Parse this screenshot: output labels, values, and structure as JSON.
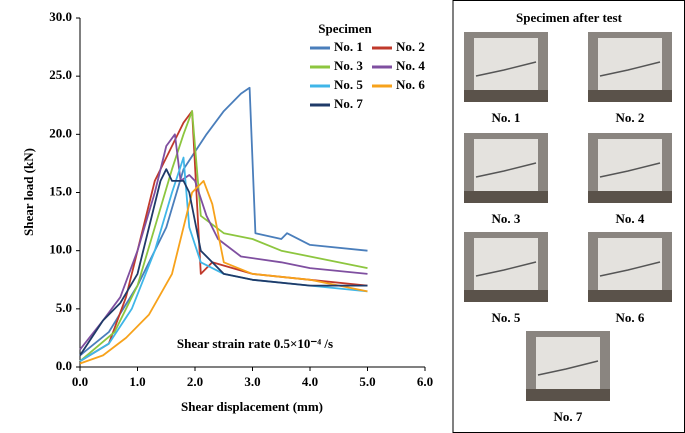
{
  "chart_data": {
    "type": "line",
    "ylabel": "Shear load (kN)",
    "xlabel": "Shear displacement (mm)",
    "annotation": "Shear strain rate 0.5×10⁻⁴ /s",
    "legend_title": "Specimen",
    "xlim": [
      0,
      6
    ],
    "ylim": [
      0,
      30
    ],
    "xticks": [
      {
        "value": 0,
        "label": "0.0"
      },
      {
        "value": 1,
        "label": "1.0"
      },
      {
        "value": 2,
        "label": "2.0"
      },
      {
        "value": 3,
        "label": "3.0"
      },
      {
        "value": 4,
        "label": "4.0"
      },
      {
        "value": 5,
        "label": "5.0"
      },
      {
        "value": 6,
        "label": "6.0"
      }
    ],
    "yticks": [
      {
        "value": 0,
        "label": "0.0"
      },
      {
        "value": 5,
        "label": "5.0"
      },
      {
        "value": 10,
        "label": "10.0"
      },
      {
        "value": 15,
        "label": "15.0"
      },
      {
        "value": 20,
        "label": "20.0"
      },
      {
        "value": 25,
        "label": "25.0"
      },
      {
        "value": 30,
        "label": "30.0"
      }
    ],
    "grid": false,
    "series": [
      {
        "name": "No. 1",
        "color": "#4a7ebb",
        "x": [
          0,
          0.5,
          1.0,
          1.5,
          1.8,
          2.2,
          2.5,
          2.8,
          2.95,
          3.05,
          3.5,
          3.6,
          4.0,
          5.0
        ],
        "values": [
          1,
          3,
          7,
          12,
          17,
          20,
          22,
          23.5,
          24,
          11.5,
          11,
          11.5,
          10.5,
          10
        ]
      },
      {
        "name": "No. 2",
        "color": "#c0392b",
        "x": [
          0,
          0.5,
          0.8,
          1.1,
          1.3,
          1.6,
          1.8,
          1.95,
          2.1,
          2.3,
          3.0,
          4.0,
          5.0
        ],
        "values": [
          0.5,
          2,
          6,
          12,
          16,
          19,
          21,
          22,
          8,
          9,
          8,
          7.5,
          7
        ]
      },
      {
        "name": "No. 3",
        "color": "#8dc63f",
        "x": [
          0,
          0.6,
          1.0,
          1.3,
          1.6,
          1.8,
          1.95,
          2.1,
          2.5,
          3.0,
          3.5,
          4.0,
          5.0
        ],
        "values": [
          0.5,
          3,
          7,
          12,
          17,
          20,
          22,
          13,
          11.5,
          11,
          10,
          9.5,
          8.5
        ]
      },
      {
        "name": "No. 4",
        "color": "#7f4fa0",
        "x": [
          0,
          0.4,
          0.7,
          1.0,
          1.3,
          1.5,
          1.65,
          1.75,
          1.9,
          2.0,
          2.2,
          2.4,
          2.8,
          3.5,
          4.0,
          5.0
        ],
        "values": [
          1.5,
          4,
          6,
          10,
          15,
          19,
          20,
          16,
          16.5,
          16,
          13,
          11,
          9.5,
          9,
          8.5,
          8
        ]
      },
      {
        "name": "No. 5",
        "color": "#3fb6e8",
        "x": [
          0,
          0.5,
          0.9,
          1.3,
          1.6,
          1.8,
          1.9,
          2.1,
          2.5,
          3.0,
          4.0,
          5.0
        ],
        "values": [
          0.5,
          2,
          5,
          10,
          15,
          18,
          12,
          9,
          8,
          7.5,
          7,
          6.5
        ]
      },
      {
        "name": "No. 6",
        "color": "#f7a21b",
        "x": [
          0,
          0.4,
          0.8,
          1.2,
          1.6,
          1.8,
          1.95,
          2.15,
          2.3,
          2.5,
          3.0,
          4.0,
          5.0
        ],
        "values": [
          0.3,
          1,
          2.5,
          4.5,
          8,
          12,
          15,
          16,
          14,
          9,
          8,
          7.5,
          6.5
        ]
      },
      {
        "name": "No. 7",
        "color": "#1f3a68",
        "x": [
          0,
          0.4,
          0.7,
          1.0,
          1.2,
          1.4,
          1.5,
          1.6,
          1.8,
          1.9,
          2.1,
          2.5,
          3.0,
          4.0,
          5.0
        ],
        "values": [
          1,
          4,
          5.5,
          8,
          12,
          16,
          17,
          16,
          16,
          15,
          10,
          8,
          7.5,
          7,
          7
        ]
      }
    ]
  },
  "photo_panel": {
    "title": "Specimen after test",
    "labels": [
      "No. 1",
      "No. 2",
      "No. 3",
      "No. 4",
      "No. 5",
      "No. 6",
      "No. 7"
    ]
  }
}
